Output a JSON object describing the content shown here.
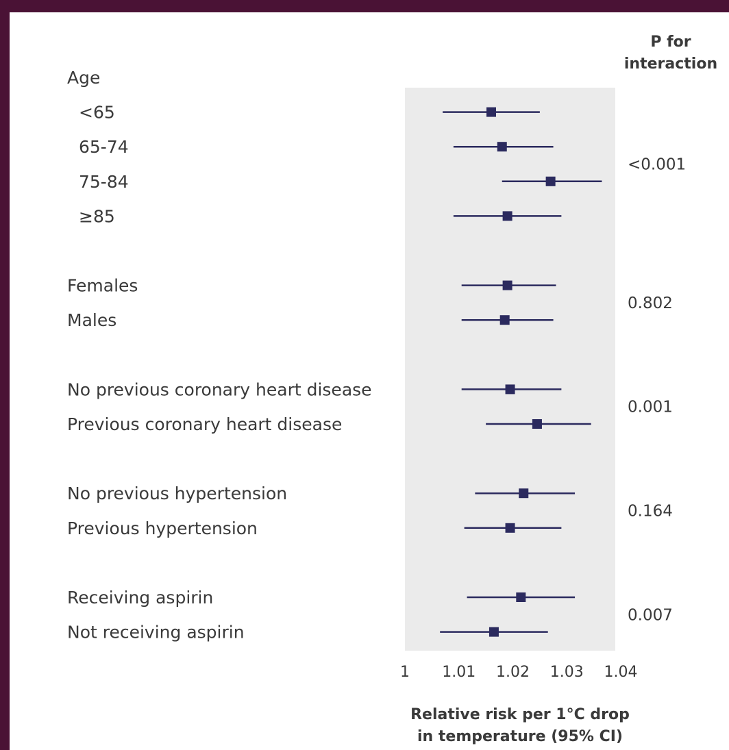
{
  "chart_data": {
    "type": "forest",
    "header": [
      "P for",
      "interaction"
    ],
    "xlabel": [
      "Relative risk per 1°C drop",
      "in temperature (95% CI)"
    ],
    "xticks": [
      "1",
      "1.01",
      "1.02",
      "1.03",
      "1.04"
    ],
    "xlim": [
      1,
      1.04
    ],
    "colors": {
      "marker": "#2b2a5e",
      "panel": "#ebebeb",
      "frame": "#4a1235"
    },
    "rows": [
      {
        "label": "Age",
        "header": true
      },
      {
        "label": "<65",
        "est": 1.016,
        "lo": 1.007,
        "hi": 1.025,
        "indent": true
      },
      {
        "label": "65-74",
        "est": 1.018,
        "lo": 1.009,
        "hi": 1.0275,
        "indent": true
      },
      {
        "label": "75-84",
        "est": 1.027,
        "lo": 1.018,
        "hi": 1.0365,
        "indent": true
      },
      {
        "label": "≥85",
        "est": 1.019,
        "lo": 1.009,
        "hi": 1.029,
        "indent": true
      },
      {
        "label": "",
        "spacer": true
      },
      {
        "label": "Females",
        "est": 1.019,
        "lo": 1.0105,
        "hi": 1.028
      },
      {
        "label": "Males",
        "est": 1.0185,
        "lo": 1.0105,
        "hi": 1.0275
      },
      {
        "label": "",
        "spacer": true
      },
      {
        "label": "No previous coronary heart disease",
        "est": 1.0195,
        "lo": 1.0105,
        "hi": 1.029
      },
      {
        "label": "Previous coronary heart disease",
        "est": 1.0245,
        "lo": 1.015,
        "hi": 1.0345
      },
      {
        "label": "",
        "spacer": true
      },
      {
        "label": "No previous hypertension",
        "est": 1.022,
        "lo": 1.013,
        "hi": 1.0315
      },
      {
        "label": "Previous hypertension",
        "est": 1.0195,
        "lo": 1.011,
        "hi": 1.029
      },
      {
        "label": "",
        "spacer": true
      },
      {
        "label": "Receiving aspirin",
        "est": 1.0215,
        "lo": 1.0115,
        "hi": 1.0315
      },
      {
        "label": "Not receiving aspirin",
        "est": 1.0165,
        "lo": 1.0065,
        "hi": 1.0265
      }
    ],
    "p_values": [
      {
        "value": "<0.001",
        "rows": [
          1,
          4
        ]
      },
      {
        "value": "0.802",
        "rows": [
          6,
          7
        ]
      },
      {
        "value": "0.001",
        "rows": [
          9,
          10
        ]
      },
      {
        "value": "0.164",
        "rows": [
          12,
          13
        ]
      },
      {
        "value": "0.007",
        "rows": [
          15,
          16
        ]
      }
    ]
  }
}
